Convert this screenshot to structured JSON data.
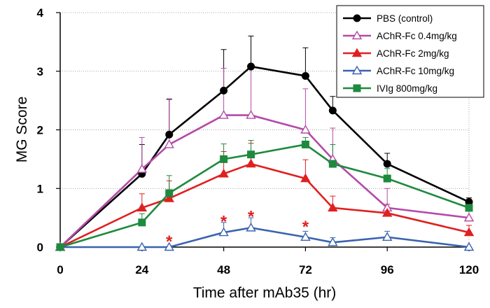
{
  "chart_data": {
    "type": "line",
    "title": "",
    "xlabel": "Time after mAb35 (hr)",
    "ylabel": "MG Score",
    "xlim": [
      0,
      120
    ],
    "ylim": [
      0,
      4
    ],
    "xticks": [
      0,
      24,
      48,
      72,
      96,
      120
    ],
    "xtick_labels": [
      "0",
      "24",
      "48",
      "72",
      "96",
      "120"
    ],
    "yticks": [
      0,
      1,
      2,
      3,
      4
    ],
    "ytick_labels": [
      "0",
      "1",
      "2",
      "3",
      "4"
    ],
    "grid": "horizontal dotted",
    "legend_position": "top-right",
    "x": [
      0,
      24,
      32,
      48,
      56,
      72,
      80,
      96,
      120
    ],
    "series": [
      {
        "name": "PBS (control)",
        "color": "#000000",
        "marker": "circle-filled",
        "values": [
          0,
          1.25,
          1.92,
          2.67,
          3.08,
          2.92,
          2.33,
          1.42,
          0.77
        ],
        "error": [
          0,
          0.5,
          0.6,
          0.7,
          0.52,
          0.48,
          0.24,
          0.18,
          0.07
        ]
      },
      {
        "name": "AChR-Fc 0.4mg/kg",
        "color": "#b44aa8",
        "marker": "triangle-open",
        "values": [
          0,
          1.33,
          1.75,
          2.25,
          2.25,
          2.0,
          1.5,
          0.67,
          0.5
        ],
        "error": [
          0,
          0.54,
          0.78,
          0.8,
          0.85,
          0.7,
          0.53,
          0.33,
          0.16
        ]
      },
      {
        "name": "AChR-Fc 2mg/kg",
        "color": "#e02020",
        "marker": "triangle-filled",
        "values": [
          0,
          0.67,
          0.83,
          1.25,
          1.42,
          1.17,
          0.67,
          0.58,
          0.25
        ],
        "error": [
          0,
          0.24,
          0.3,
          0.38,
          0.35,
          0.32,
          0.2,
          0.15,
          0.12
        ]
      },
      {
        "name": "AChR-Fc 10mg/kg",
        "color": "#3a63b0",
        "marker": "triangle-open",
        "values": [
          0,
          0,
          0,
          0.25,
          0.33,
          0.17,
          0.08,
          0.17,
          0
        ],
        "error": [
          0,
          0,
          0,
          0.17,
          0.17,
          0.1,
          0.08,
          0.1,
          0
        ]
      },
      {
        "name": "IVIg 800mg/kg",
        "color": "#1e8a3e",
        "marker": "square-filled",
        "values": [
          0,
          0.42,
          0.92,
          1.5,
          1.58,
          1.75,
          1.42,
          1.17,
          0.67
        ],
        "error": [
          0,
          0.15,
          0.3,
          0.26,
          0.24,
          0.12,
          0.33,
          0.17,
          0.1
        ]
      }
    ],
    "annotations": [
      {
        "text": "*",
        "x": 32,
        "y": 0.17,
        "color": "#e02020"
      },
      {
        "text": "*",
        "x": 48,
        "y": 0.51,
        "color": "#e02020"
      },
      {
        "text": "*",
        "x": 56,
        "y": 0.59,
        "color": "#e02020"
      },
      {
        "text": "*",
        "x": 72,
        "y": 0.42,
        "color": "#e02020"
      }
    ]
  }
}
